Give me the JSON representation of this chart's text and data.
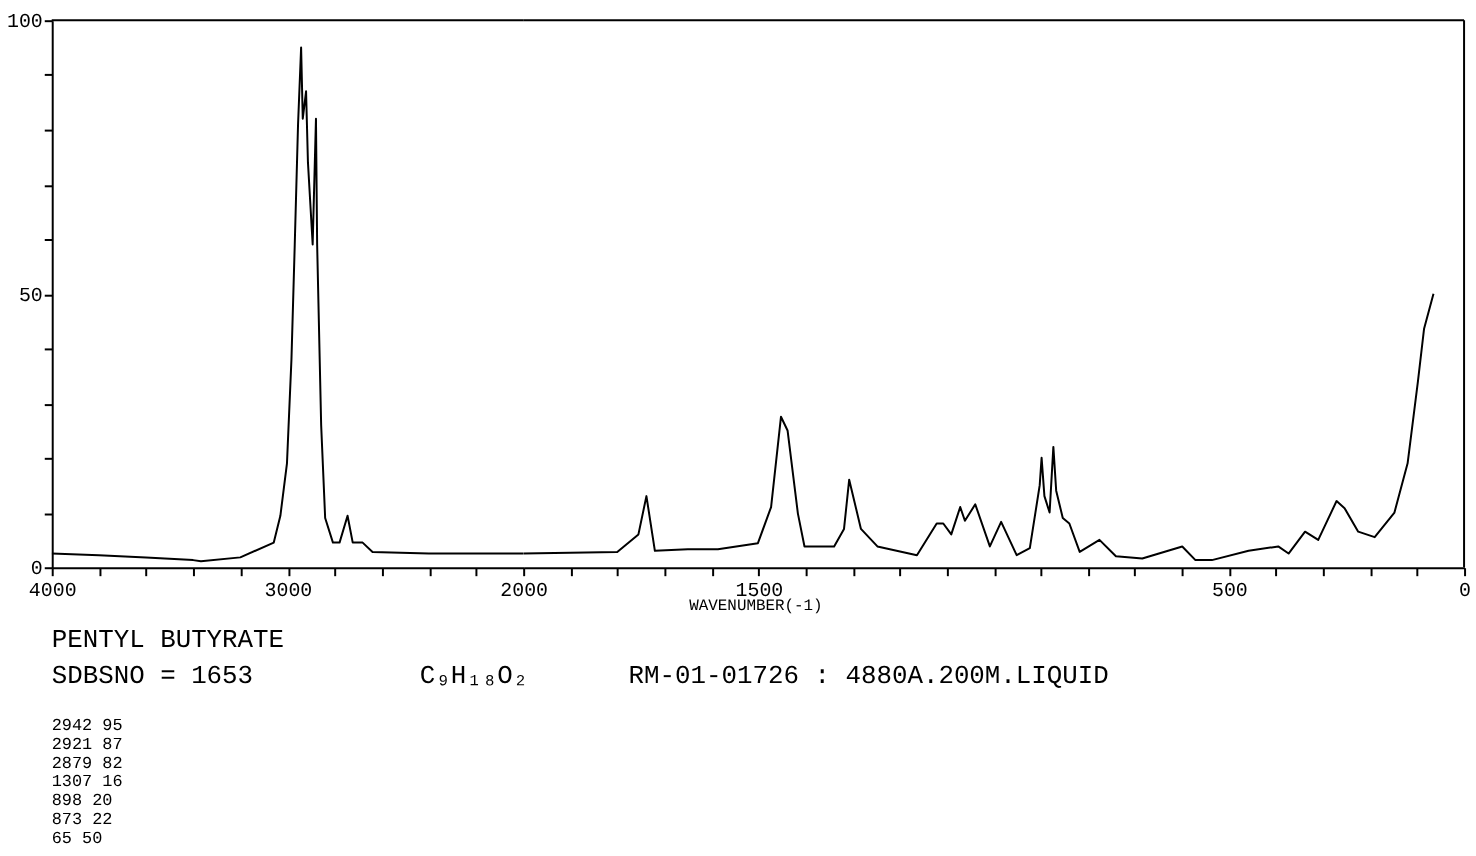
{
  "chart_data": [
    {
      "type": "line",
      "title": "PENTYL BUTYRATE",
      "x": [
        4000,
        3800,
        3600,
        3400,
        3367,
        3200,
        3058,
        3030,
        3002,
        2983,
        2969,
        2955,
        2942,
        2935,
        2921,
        2913,
        2893,
        2879,
        2874,
        2857,
        2840,
        2807,
        2779,
        2745,
        2723,
        2681,
        2639,
        2400,
        2200,
        2000
      ],
      "values": [
        2.5,
        2.2,
        1.8,
        1.3,
        1.1,
        1.8,
        4.5,
        9.4,
        19,
        38,
        59,
        81,
        95,
        82,
        87,
        74,
        59,
        82,
        59,
        26,
        9,
        4.5,
        4.5,
        9.4,
        4.5,
        4.5,
        2.8,
        2.5,
        2.5,
        2.5
      ],
      "color": "#000000",
      "xlim": [
        4000,
        2000
      ],
      "xticks": [
        4000,
        {
          "value": 3800,
          "label": null
        },
        {
          "value": 3600,
          "label": null
        },
        {
          "value": 3400,
          "label": null
        },
        {
          "value": 3200,
          "label": null
        },
        3000,
        {
          "value": 2800,
          "label": null
        },
        {
          "value": 2600,
          "label": null
        },
        {
          "value": 2400,
          "label": null
        },
        {
          "value": 2200,
          "label": null
        }
      ],
      "ylim": [
        0,
        100
      ],
      "yticks": [
        0,
        {
          "value": 10,
          "label": null
        },
        {
          "value": 20,
          "label": null
        },
        {
          "value": 30,
          "label": null
        },
        {
          "value": 40,
          "label": null
        },
        50,
        {
          "value": 60,
          "label": null
        },
        {
          "value": 70,
          "label": null
        },
        {
          "value": 80,
          "label": null
        },
        {
          "value": 90,
          "label": null
        },
        100
      ],
      "grid": false,
      "marker": "none",
      "line_style": "solid",
      "annotations": [
        "SDBSNO = 1653",
        "C₉H₁₈O₂",
        "RM-01-01726 : 4880A.200M.LIQUID",
        "2942    95",
        "2921    87",
        "2879    82",
        "1307    16",
        " 898    20",
        " 873    22",
        "  65    50"
      ]
    },
    {
      "type": "line",
      "xlabel": "WAVENUMBER(-1)",
      "x": [
        2000,
        1800,
        1755,
        1738,
        1720,
        1650,
        1586,
        1501,
        1473,
        1452,
        1438,
        1416,
        1402,
        1339,
        1318,
        1307,
        1282,
        1247,
        1163,
        1121,
        1107,
        1090,
        1071,
        1061,
        1039,
        1008,
        984,
        951,
        923,
        902,
        898,
        892,
        881,
        873,
        867,
        853,
        839,
        817,
        775,
        740,
        684,
        599,
        571,
        536,
        458,
        395,
        373,
        338,
        310,
        271,
        254,
        225,
        190,
        148,
        120,
        98,
        85,
        65
      ],
      "values": [
        2.5,
        2.8,
        6,
        13,
        3,
        3.3,
        3.3,
        4.4,
        11,
        27.5,
        25,
        9.8,
        3.8,
        3.8,
        7,
        16,
        7,
        3.8,
        2.2,
        8,
        8,
        6,
        11,
        8.5,
        11.5,
        3.8,
        8.3,
        2.2,
        3.5,
        15,
        20,
        13,
        10,
        22,
        14,
        9,
        8,
        2.8,
        5,
        2,
        1.6,
        3.8,
        1.3,
        1.3,
        3,
        3.8,
        2.5,
        6.5,
        5,
        12.1,
        10.8,
        6.5,
        5.5,
        10,
        19,
        34,
        43.6,
        50
      ],
      "color": "#000000",
      "xlim": [
        2000,
        0
      ],
      "xticks": [
        2000,
        {
          "value": 1900,
          "label": null
        },
        {
          "value": 1800,
          "label": null
        },
        {
          "value": 1700,
          "label": null
        },
        {
          "value": 1600,
          "label": null
        },
        1500,
        {
          "value": 1400,
          "label": null
        },
        {
          "value": 1300,
          "label": null
        },
        {
          "value": 1200,
          "label": null
        },
        {
          "value": 1100,
          "label": null
        },
        {
          "value": 1000,
          "label": null
        },
        {
          "value": 900,
          "label": null
        },
        {
          "value": 800,
          "label": null
        },
        {
          "value": 700,
          "label": null
        },
        {
          "value": 600,
          "label": null
        },
        500,
        {
          "value": 400,
          "label": null
        },
        {
          "value": 300,
          "label": null
        },
        {
          "value": 200,
          "label": null
        },
        {
          "value": 100,
          "label": null
        },
        0
      ],
      "ylim": [
        0,
        100
      ],
      "tick_labels": "x",
      "grid": false,
      "marker": "none",
      "line_style": "solid"
    }
  ]
}
